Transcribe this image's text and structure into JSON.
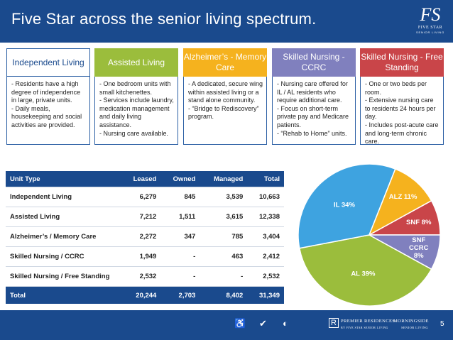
{
  "header": {
    "title": "Five Star across the senior living spectrum.",
    "logo_monogram": "FS",
    "logo_brand": "FIVE STAR",
    "logo_sub": "SENIOR LIVING"
  },
  "columns": [
    {
      "title": "Independent Living",
      "color": "#ffffff",
      "text_color": "#1a4a8d",
      "body": "- Residents have a high degree of independence in large, private units.\n- Daily meals, housekeeping and social activities are provided."
    },
    {
      "title": "Assisted Living",
      "color": "#9bbd3c",
      "text_color": "#ffffff",
      "body": "- One bedroom units with small kitchenettes.\n- Services include laundry, medication management and daily living assistance.\n- Nursing care available."
    },
    {
      "title": "Alzheimer’s - Memory Care",
      "color": "#f5b21e",
      "text_color": "#ffffff",
      "body": "- A dedicated, secure wing within assisted living or a stand alone community.\n- “Bridge to Rediscovery” program."
    },
    {
      "title": "Skilled Nursing - CCRC",
      "color": "#8080be",
      "text_color": "#ffffff",
      "body": "- Nursing care offered for IL / AL residents who require additional care.\n- Focus on short-term private pay and Medicare patients.\n- “Rehab to Home” units."
    },
    {
      "title": "Skilled Nursing - Free Standing",
      "color": "#c94549",
      "text_color": "#ffffff",
      "body": "- One or two beds per room.\n- Extensive nursing care to residents 24 hours per day.\n- Includes post-acute care and long-term chronic care."
    }
  ],
  "table": {
    "headers": [
      "Unit Type",
      "Leased",
      "Owned",
      "Managed",
      "Total"
    ],
    "rows": [
      [
        "Independent Living",
        "6,279",
        "845",
        "3,539",
        "10,663"
      ],
      [
        "Assisted Living",
        "7,212",
        "1,511",
        "3,615",
        "12,338"
      ],
      [
        "Alzheimer’s / Memory Care",
        "2,272",
        "347",
        "785",
        "3,404"
      ],
      [
        "Skilled Nursing / CCRC",
        "1,949",
        "-",
        "463",
        "2,412"
      ],
      [
        "Skilled Nursing / Free Standing",
        "2,532",
        "-",
        "-",
        "2,532"
      ]
    ],
    "total": [
      "Total",
      "20,244",
      "2,703",
      "8,402",
      "31,349"
    ]
  },
  "chart_data": {
    "type": "pie",
    "title": "",
    "slices": [
      {
        "label": "AL 39%",
        "value": 39,
        "color": "#9bbd3c"
      },
      {
        "label": "IL 34%",
        "value": 34,
        "color": "#3ea3e0"
      },
      {
        "label": "ALZ 11%",
        "value": 11,
        "color": "#f5b21e"
      },
      {
        "label": "SNF 8%",
        "value": 8,
        "color": "#c94549"
      },
      {
        "label": "SNF CCRC 8%",
        "value": 8,
        "color": "#8080be"
      }
    ]
  },
  "footer": {
    "page_number": "5",
    "brand1": "PREMIER RESIDENCES",
    "brand1_sub": "BY FIVE STAR SENIOR LIVING",
    "brand2": "MORNINGSIDE",
    "brand2_sub": "SENIOR LIVING",
    "icons": [
      "wheelchair-icon",
      "checkmark-badge-icon",
      "moon-icon",
      "pr-monogram-icon"
    ]
  }
}
